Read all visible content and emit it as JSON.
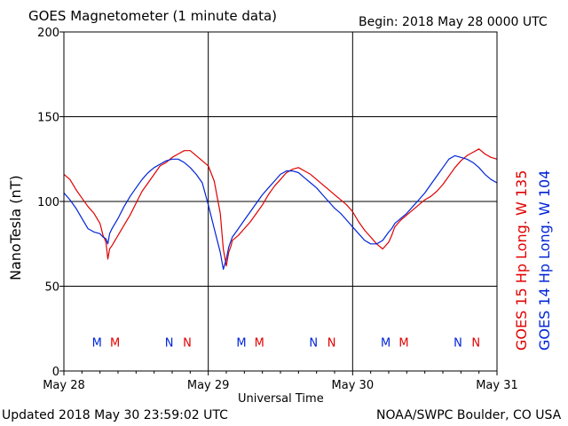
{
  "header": {
    "title": "GOES Magnetometer (1 minute data)",
    "begin": "Begin:  2018 May 28 0000 UTC"
  },
  "footer": {
    "updated": "Updated 2018 May 30 23:59:02 UTC",
    "source": "NOAA/SWPC Boulder, CO USA"
  },
  "colors": {
    "goes15": "#e00000",
    "goes14": "#0024d8",
    "axis": "#000000"
  },
  "chart_data": {
    "type": "line",
    "title": "GOES Magnetometer (1 minute data)",
    "xlabel": "Universal Time",
    "ylabel": "NanoTesla (nT)",
    "ylim": [
      0,
      200
    ],
    "yticks": [
      0,
      50,
      100,
      150,
      200
    ],
    "xlim": [
      0,
      72
    ],
    "xticks": [
      {
        "x": 0,
        "label": "May 28"
      },
      {
        "x": 24,
        "label": "May 29"
      },
      {
        "x": 48,
        "label": "May 30"
      },
      {
        "x": 72,
        "label": "May 31"
      }
    ],
    "grid": true,
    "series": [
      {
        "name": "GOES 15 Hp  Long. W 135",
        "color": "#e00000",
        "x": [
          0,
          1,
          2,
          3,
          4,
          5,
          6,
          6.5,
          7,
          7.3,
          7.6,
          8,
          9,
          10,
          11,
          12,
          13,
          14,
          15,
          16,
          17,
          18,
          19,
          20,
          21,
          22,
          23,
          24,
          25,
          26,
          26.5,
          27,
          27.4,
          27.8,
          28,
          29,
          30,
          31,
          32,
          33,
          34,
          35,
          36,
          37,
          38,
          39,
          40,
          41,
          42,
          43,
          44,
          45,
          46,
          47,
          48,
          49,
          50,
          51,
          52,
          53,
          54,
          54.5,
          55,
          56,
          57,
          58,
          59,
          60,
          61,
          62,
          63,
          64,
          65,
          66,
          67,
          68,
          69,
          70,
          71,
          72
        ],
        "y": [
          116,
          113,
          107,
          102,
          97,
          93,
          87,
          80,
          76,
          66,
          72,
          74,
          80,
          86,
          92,
          99,
          106,
          111,
          116,
          121,
          123,
          126,
          128,
          130,
          130,
          127,
          124,
          121,
          112,
          93,
          72,
          62,
          70,
          74,
          77,
          80,
          84,
          88,
          93,
          98,
          104,
          109,
          113,
          117,
          119,
          120,
          118,
          116,
          113,
          110,
          107,
          104,
          101,
          98,
          94,
          88,
          83,
          79,
          75,
          72,
          76,
          80,
          85,
          89,
          92,
          95,
          98,
          101,
          103,
          106,
          110,
          115,
          120,
          124,
          127,
          129,
          131,
          128,
          126,
          125
        ]
      },
      {
        "name": "GOES 14 Hp  Long. W 104",
        "color": "#0024d8",
        "x": [
          0,
          1,
          2,
          3,
          4,
          5,
          6,
          6.5,
          7,
          7.3,
          7.6,
          8,
          9,
          10,
          11,
          12,
          13,
          14,
          15,
          16,
          17,
          18,
          19,
          20,
          21,
          22,
          23,
          24,
          25,
          26,
          26.5,
          27,
          27.4,
          27.8,
          28,
          29,
          30,
          31,
          32,
          33,
          34,
          35,
          36,
          37,
          38,
          39,
          40,
          41,
          42,
          43,
          44,
          45,
          46,
          47,
          48,
          49,
          50,
          51,
          52,
          53,
          54,
          54.5,
          55,
          56,
          57,
          58,
          59,
          60,
          61,
          62,
          63,
          64,
          65,
          66,
          67,
          68,
          69,
          70,
          71,
          72
        ],
        "y": [
          105,
          101,
          96,
          90,
          84,
          82,
          81,
          79,
          78,
          75,
          81,
          84,
          90,
          97,
          103,
          108,
          113,
          117,
          120,
          122,
          124,
          125,
          125,
          123,
          120,
          116,
          111,
          98,
          84,
          70,
          60,
          66,
          73,
          77,
          79,
          84,
          89,
          94,
          99,
          104,
          108,
          112,
          116,
          118,
          118,
          117,
          114,
          111,
          108,
          104,
          100,
          96,
          93,
          89,
          85,
          81,
          77,
          75,
          75,
          77,
          82,
          84,
          87,
          90,
          93,
          97,
          101,
          105,
          110,
          115,
          120,
          125,
          127,
          126,
          125,
          123,
          120,
          116,
          113,
          111
        ]
      }
    ],
    "markers": [
      {
        "x": 5.5,
        "label": "M",
        "series": 1
      },
      {
        "x": 8.5,
        "label": "M",
        "series": 0
      },
      {
        "x": 17.5,
        "label": "N",
        "series": 1
      },
      {
        "x": 20.5,
        "label": "N",
        "series": 0
      },
      {
        "x": 29.5,
        "label": "M",
        "series": 1
      },
      {
        "x": 32.5,
        "label": "M",
        "series": 0
      },
      {
        "x": 41.5,
        "label": "N",
        "series": 1
      },
      {
        "x": 44.5,
        "label": "N",
        "series": 0
      },
      {
        "x": 53.5,
        "label": "M",
        "series": 1
      },
      {
        "x": 56.5,
        "label": "M",
        "series": 0
      },
      {
        "x": 65.5,
        "label": "N",
        "series": 1
      },
      {
        "x": 68.5,
        "label": "N",
        "series": 0
      }
    ],
    "marker_level": 17
  }
}
